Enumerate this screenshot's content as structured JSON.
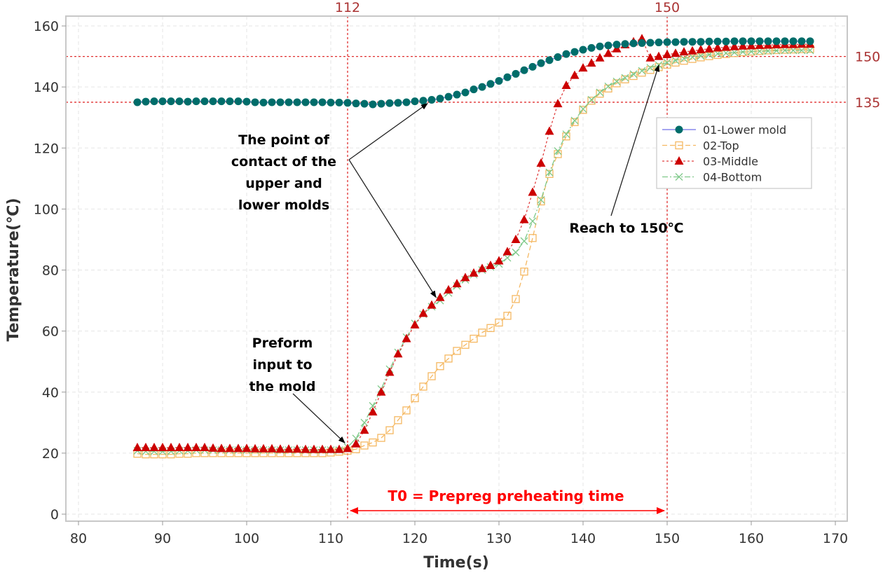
{
  "chart_data": {
    "type": "line",
    "title": "",
    "xlabel": "Time(s)",
    "ylabel": "Temperature(℃)",
    "xlim": [
      80,
      170
    ],
    "ylim": [
      0,
      160
    ],
    "xticks": [
      80,
      90,
      100,
      110,
      120,
      130,
      140,
      150,
      160,
      170
    ],
    "yticks": [
      0,
      20,
      40,
      60,
      80,
      100,
      120,
      140,
      160
    ],
    "grid": true,
    "legend_position": "right",
    "x": [
      87,
      88,
      89,
      90,
      91,
      92,
      93,
      94,
      95,
      96,
      97,
      98,
      99,
      100,
      101,
      102,
      103,
      104,
      105,
      106,
      107,
      108,
      109,
      110,
      111,
      112,
      113,
      114,
      115,
      116,
      117,
      118,
      119,
      120,
      121,
      122,
      123,
      124,
      125,
      126,
      127,
      128,
      129,
      130,
      131,
      132,
      133,
      134,
      135,
      136,
      137,
      138,
      139,
      140,
      141,
      142,
      143,
      144,
      145,
      146,
      147,
      148,
      149,
      150,
      151,
      152,
      153,
      154,
      155,
      156,
      157,
      158,
      159,
      160,
      161,
      162,
      163,
      164,
      165,
      166,
      167
    ],
    "series": [
      {
        "name": "01-Lower mold",
        "color": "#006D6A",
        "line_color": "#6f6fe8",
        "marker": "circle",
        "values": [
          135.0,
          135.2,
          135.3,
          135.3,
          135.3,
          135.3,
          135.2,
          135.3,
          135.3,
          135.3,
          135.3,
          135.3,
          135.3,
          135.2,
          135.0,
          134.9,
          135.0,
          135.0,
          135.0,
          135.0,
          135.0,
          135.0,
          135.0,
          134.9,
          134.9,
          134.8,
          134.6,
          134.5,
          134.3,
          134.5,
          134.7,
          134.8,
          135.0,
          135.3,
          135.5,
          135.8,
          136.2,
          136.8,
          137.5,
          138.2,
          139.2,
          140.0,
          141.0,
          142.0,
          143.2,
          144.3,
          145.5,
          146.6,
          147.8,
          148.8,
          149.8,
          150.8,
          151.5,
          152.2,
          152.8,
          153.3,
          153.6,
          153.9,
          154.1,
          154.3,
          154.4,
          154.5,
          154.6,
          154.7,
          154.7,
          154.8,
          154.8,
          154.8,
          154.9,
          154.9,
          154.9,
          155.0,
          155.0,
          155.0,
          155.0,
          155.0,
          155.0,
          155.0,
          155.0,
          155.0,
          155.0
        ]
      },
      {
        "name": "02-Top",
        "color": "#F5B862",
        "line_color": "#F5B862",
        "marker": "square",
        "values": [
          19.8,
          19.6,
          19.6,
          19.6,
          19.6,
          19.8,
          19.8,
          20.0,
          20.0,
          20.0,
          20.0,
          20.0,
          20.0,
          20.0,
          20.0,
          20.0,
          20.0,
          20.0,
          20.0,
          20.0,
          20.0,
          20.0,
          20.0,
          20.2,
          20.5,
          20.8,
          21.3,
          22.5,
          23.5,
          25.0,
          27.5,
          30.8,
          34.0,
          38.0,
          41.8,
          45.2,
          48.5,
          51.0,
          53.5,
          55.5,
          57.5,
          59.5,
          61.0,
          62.8,
          65.0,
          70.5,
          79.5,
          90.5,
          102.5,
          111.5,
          118.0,
          123.8,
          128.5,
          132.5,
          135.5,
          137.8,
          139.5,
          141.2,
          142.5,
          143.6,
          144.7,
          145.6,
          146.5,
          147.3,
          148.0,
          148.6,
          149.2,
          149.7,
          150.1,
          150.5,
          150.8,
          151.1,
          151.4,
          151.6,
          151.8,
          152.0,
          152.1,
          152.2,
          152.3,
          152.4,
          152.5
        ]
      },
      {
        "name": "03-Middle",
        "color": "#CC0000",
        "line_color": "#e04040",
        "marker": "triangle",
        "values": [
          21.8,
          21.8,
          21.8,
          21.8,
          21.8,
          21.8,
          21.8,
          21.8,
          21.8,
          21.6,
          21.5,
          21.5,
          21.5,
          21.5,
          21.4,
          21.4,
          21.4,
          21.3,
          21.3,
          21.3,
          21.2,
          21.2,
          21.2,
          21.2,
          21.2,
          21.5,
          23.0,
          27.5,
          33.5,
          40.0,
          46.5,
          52.5,
          57.5,
          62.0,
          65.8,
          68.5,
          71.0,
          73.5,
          75.5,
          77.5,
          79.0,
          80.5,
          81.5,
          83.0,
          86.0,
          90.0,
          96.5,
          105.5,
          115.0,
          125.5,
          134.5,
          140.5,
          143.8,
          146.2,
          147.8,
          149.5,
          151.0,
          152.5,
          153.8,
          154.8,
          155.8,
          149.5,
          150.0,
          150.6,
          151.0,
          151.5,
          151.8,
          152.2,
          152.5,
          152.8,
          153.0,
          153.2,
          153.4,
          153.5,
          153.6,
          153.7,
          153.8,
          153.9,
          153.9,
          154.0,
          154.0
        ]
      },
      {
        "name": "04-Bottom",
        "color": "#7fc98a",
        "line_color": "#7fc98a",
        "marker": "x",
        "values": [
          20.8,
          20.6,
          20.6,
          20.6,
          20.6,
          20.8,
          20.8,
          21.0,
          21.0,
          21.0,
          21.0,
          21.0,
          21.0,
          21.0,
          21.0,
          21.0,
          21.0,
          21.0,
          21.0,
          21.0,
          21.0,
          21.0,
          21.0,
          21.0,
          21.0,
          22.0,
          24.8,
          30.0,
          35.5,
          41.0,
          47.5,
          53.0,
          58.0,
          62.5,
          65.5,
          68.0,
          70.0,
          72.5,
          74.8,
          76.8,
          78.5,
          80.0,
          81.0,
          82.0,
          84.0,
          85.8,
          89.5,
          96.0,
          103.0,
          112.0,
          119.0,
          124.5,
          129.0,
          132.8,
          135.8,
          138.2,
          140.2,
          141.8,
          143.0,
          144.2,
          145.3,
          146.3,
          147.2,
          148.0,
          148.7,
          149.3,
          149.8,
          150.2,
          150.6,
          150.9,
          151.1,
          151.3,
          151.5,
          151.6,
          151.7,
          151.8,
          151.9,
          152.0,
          152.0,
          152.0,
          152.0
        ]
      }
    ],
    "reference_lines": {
      "vertical": [
        {
          "x": 112,
          "label": "112"
        },
        {
          "x": 150,
          "label": "150"
        }
      ],
      "horizontal": [
        {
          "y": 150,
          "label": "150"
        },
        {
          "y": 135,
          "label": "135"
        }
      ],
      "color": "#e03030"
    },
    "annotations": [
      {
        "id": "contact",
        "lines": [
          "The point of",
          "contact of the",
          "upper and",
          "lower molds"
        ],
        "points_to": [
          [
            122,
            135.5
          ],
          [
            123,
            72
          ]
        ]
      },
      {
        "id": "preform",
        "lines": [
          "Preform",
          "input to",
          "the mold"
        ],
        "points_to": [
          [
            112,
            22
          ]
        ]
      },
      {
        "id": "reach",
        "lines": [
          "Reach to 150℃"
        ],
        "points_to": [
          [
            149.5,
            148.5
          ]
        ]
      },
      {
        "id": "t0",
        "lines": [
          "T0 = Prepreg preheating time"
        ],
        "span": [
          112,
          150
        ],
        "y": 1
      }
    ]
  }
}
